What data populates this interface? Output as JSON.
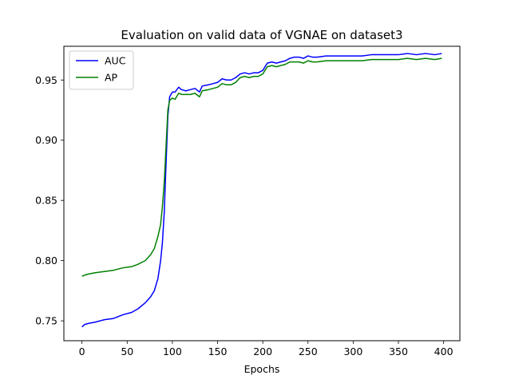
{
  "chart_data": {
    "type": "line",
    "title": "Evaluation on valid data of VGNAE on dataset3",
    "xlabel": "Epochs",
    "ylabel": "",
    "xlim": [
      -20,
      418
    ],
    "ylim": [
      0.7335,
      0.978
    ],
    "xticks": [
      0,
      50,
      100,
      150,
      200,
      250,
      300,
      350,
      400
    ],
    "xtick_labels": [
      "0",
      "50",
      "100",
      "150",
      "200",
      "250",
      "300",
      "350",
      "400"
    ],
    "yticks": [
      0.75,
      0.8,
      0.85,
      0.9,
      0.95
    ],
    "ytick_labels": [
      "0.75",
      "0.80",
      "0.85",
      "0.90",
      "0.95"
    ],
    "grid": false,
    "legend_position": "top-left",
    "series": [
      {
        "name": "AUC",
        "color": "#0000ff",
        "points": [
          [
            0,
            0.745
          ],
          [
            3,
            0.747
          ],
          [
            8,
            0.748
          ],
          [
            15,
            0.749
          ],
          [
            25,
            0.751
          ],
          [
            35,
            0.752
          ],
          [
            45,
            0.755
          ],
          [
            55,
            0.757
          ],
          [
            62,
            0.76
          ],
          [
            70,
            0.765
          ],
          [
            76,
            0.77
          ],
          [
            80,
            0.775
          ],
          [
            84,
            0.785
          ],
          [
            87,
            0.8
          ],
          [
            89,
            0.815
          ],
          [
            91,
            0.84
          ],
          [
            93,
            0.88
          ],
          [
            95,
            0.92
          ],
          [
            97,
            0.936
          ],
          [
            100,
            0.94
          ],
          [
            103,
            0.94
          ],
          [
            107,
            0.944
          ],
          [
            110,
            0.942
          ],
          [
            115,
            0.941
          ],
          [
            120,
            0.942
          ],
          [
            125,
            0.943
          ],
          [
            130,
            0.94
          ],
          [
            133,
            0.945
          ],
          [
            140,
            0.946
          ],
          [
            145,
            0.947
          ],
          [
            150,
            0.948
          ],
          [
            155,
            0.951
          ],
          [
            160,
            0.95
          ],
          [
            165,
            0.95
          ],
          [
            170,
            0.952
          ],
          [
            175,
            0.955
          ],
          [
            180,
            0.956
          ],
          [
            185,
            0.955
          ],
          [
            190,
            0.956
          ],
          [
            195,
            0.956
          ],
          [
            200,
            0.958
          ],
          [
            205,
            0.964
          ],
          [
            210,
            0.965
          ],
          [
            215,
            0.964
          ],
          [
            220,
            0.965
          ],
          [
            225,
            0.966
          ],
          [
            230,
            0.968
          ],
          [
            235,
            0.969
          ],
          [
            240,
            0.969
          ],
          [
            245,
            0.968
          ],
          [
            250,
            0.97
          ],
          [
            255,
            0.969
          ],
          [
            260,
            0.969
          ],
          [
            270,
            0.97
          ],
          [
            280,
            0.97
          ],
          [
            290,
            0.97
          ],
          [
            300,
            0.97
          ],
          [
            310,
            0.97
          ],
          [
            320,
            0.971
          ],
          [
            330,
            0.971
          ],
          [
            340,
            0.971
          ],
          [
            350,
            0.971
          ],
          [
            360,
            0.972
          ],
          [
            370,
            0.971
          ],
          [
            380,
            0.972
          ],
          [
            390,
            0.971
          ],
          [
            398,
            0.972
          ]
        ]
      },
      {
        "name": "AP",
        "color": "#008000",
        "points": [
          [
            0,
            0.787
          ],
          [
            3,
            0.788
          ],
          [
            8,
            0.789
          ],
          [
            15,
            0.79
          ],
          [
            25,
            0.791
          ],
          [
            35,
            0.792
          ],
          [
            45,
            0.794
          ],
          [
            55,
            0.795
          ],
          [
            62,
            0.797
          ],
          [
            70,
            0.8
          ],
          [
            76,
            0.805
          ],
          [
            80,
            0.81
          ],
          [
            84,
            0.82
          ],
          [
            87,
            0.83
          ],
          [
            89,
            0.845
          ],
          [
            91,
            0.865
          ],
          [
            93,
            0.895
          ],
          [
            95,
            0.925
          ],
          [
            97,
            0.933
          ],
          [
            100,
            0.935
          ],
          [
            103,
            0.934
          ],
          [
            107,
            0.939
          ],
          [
            110,
            0.938
          ],
          [
            115,
            0.938
          ],
          [
            120,
            0.938
          ],
          [
            125,
            0.939
          ],
          [
            130,
            0.936
          ],
          [
            133,
            0.941
          ],
          [
            140,
            0.942
          ],
          [
            145,
            0.943
          ],
          [
            150,
            0.944
          ],
          [
            155,
            0.947
          ],
          [
            160,
            0.946
          ],
          [
            165,
            0.946
          ],
          [
            170,
            0.948
          ],
          [
            175,
            0.952
          ],
          [
            180,
            0.953
          ],
          [
            185,
            0.952
          ],
          [
            190,
            0.953
          ],
          [
            195,
            0.953
          ],
          [
            200,
            0.955
          ],
          [
            205,
            0.961
          ],
          [
            210,
            0.962
          ],
          [
            215,
            0.961
          ],
          [
            220,
            0.962
          ],
          [
            225,
            0.963
          ],
          [
            230,
            0.965
          ],
          [
            235,
            0.965
          ],
          [
            240,
            0.965
          ],
          [
            245,
            0.964
          ],
          [
            250,
            0.966
          ],
          [
            255,
            0.965
          ],
          [
            260,
            0.965
          ],
          [
            270,
            0.966
          ],
          [
            280,
            0.966
          ],
          [
            290,
            0.966
          ],
          [
            300,
            0.966
          ],
          [
            310,
            0.966
          ],
          [
            320,
            0.967
          ],
          [
            330,
            0.967
          ],
          [
            340,
            0.967
          ],
          [
            350,
            0.967
          ],
          [
            360,
            0.968
          ],
          [
            370,
            0.967
          ],
          [
            380,
            0.968
          ],
          [
            390,
            0.967
          ],
          [
            398,
            0.968
          ]
        ]
      }
    ]
  }
}
